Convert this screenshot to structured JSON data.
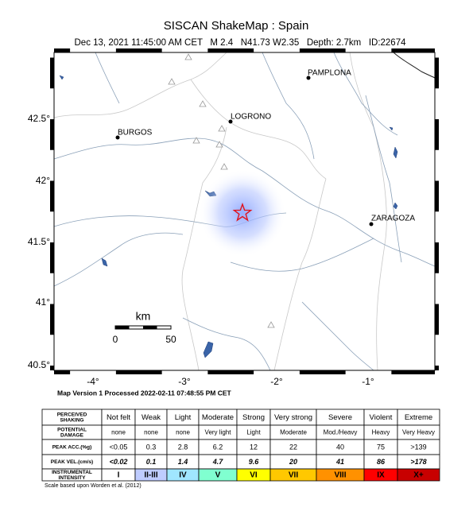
{
  "header": {
    "title": "SISCAN ShakeMap : Spain",
    "subtitle": "Dec 13, 2021 11:45:00 AM CET   M 2.4   N41.73 W2.35   Depth: 2.7km   ID:22674"
  },
  "map": {
    "lat_labels": [
      "42.5°",
      "42°",
      "41.5°",
      "41°",
      "40.5°"
    ],
    "lon_labels": [
      "-4°",
      "-3°",
      "-2°",
      "-1°"
    ],
    "cities": [
      "PAMPLONA",
      "LOGRONO",
      "BURGOS",
      "ZARAGOZA"
    ],
    "scale": {
      "unit": "km",
      "labels": [
        "0",
        "50"
      ]
    }
  },
  "processed": "Map Version 1 Processed 2022-02-11 07:48:55 PM CET",
  "legend": {
    "rows": [
      {
        "label": [
          "PERCEIVED",
          "SHAKING"
        ],
        "cells": [
          "Not felt",
          "Weak",
          "Light",
          "Moderate",
          "Strong",
          "Very strong",
          "Severe",
          "Violent",
          "Extreme"
        ]
      },
      {
        "label": [
          "POTENTIAL",
          "DAMAGE"
        ],
        "cells": [
          "none",
          "none",
          "none",
          "Very light",
          "Light",
          "Moderate",
          "Mod./Heavy",
          "Heavy",
          "Very Heavy"
        ]
      },
      {
        "label": [
          "PEAK ACC.(%g)"
        ],
        "cells": [
          "<0.05",
          "0.3",
          "2.8",
          "6.2",
          "12",
          "22",
          "40",
          "75",
          ">139"
        ]
      },
      {
        "label": [
          "PEAK VEL.(cm/s)"
        ],
        "cells": [
          "<0.02",
          "0.1",
          "1.4",
          "4.7",
          "9.6",
          "20",
          "41",
          "86",
          ">178"
        ]
      },
      {
        "label": [
          "INSTRUMENTAL",
          "INTENSITY"
        ],
        "cells": [
          "I",
          "II-III",
          "IV",
          "V",
          "VI",
          "VII",
          "VIII",
          "IX",
          "X+"
        ]
      }
    ],
    "intensity_colors": [
      "#ffffff",
      "#bfccff",
      "#a0e6ff",
      "#80ffd0",
      "#ffff00",
      "#ffc800",
      "#ff9100",
      "#ff0000",
      "#c80000"
    ]
  },
  "footnote": "Scale based upon Worden et al. (2012)"
}
